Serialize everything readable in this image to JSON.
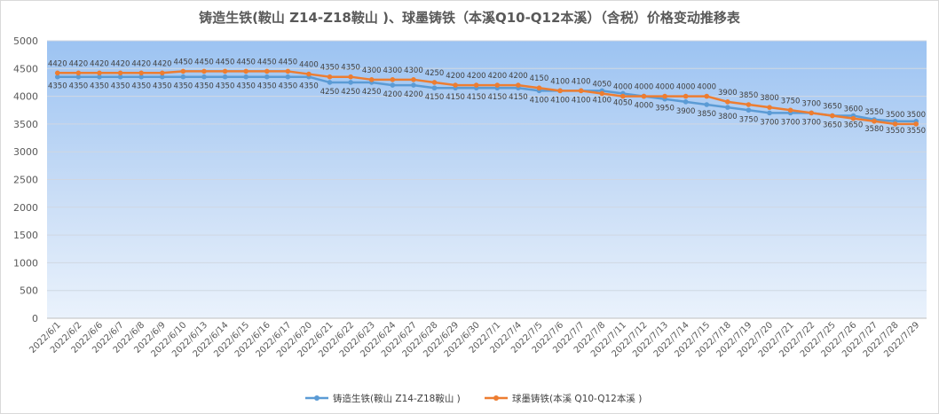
{
  "chart_data": {
    "type": "line",
    "title": "铸造生铁(鞍山 Z14-Z18鞍山 )、球墨铸铁（本溪Q10-Q12本溪）（含税）价格变动推移表",
    "x": [
      "2022/6/1",
      "2022/6/2",
      "2022/6/6",
      "2022/6/7",
      "2022/6/8",
      "2022/6/9",
      "2022/6/10",
      "2022/6/13",
      "2022/6/14",
      "2022/6/15",
      "2022/6/16",
      "2022/6/17",
      "2022/6/20",
      "2022/6/21",
      "2022/6/22",
      "2022/6/23",
      "2022/6/24",
      "2022/6/27",
      "2022/6/28",
      "2022/6/29",
      "2022/6/30",
      "2022/7/1",
      "2022/7/4",
      "2022/7/5",
      "2022/7/6",
      "2022/7/7",
      "2022/7/8",
      "2022/7/11",
      "2022/7/12",
      "2022/7/13",
      "2022/7/14",
      "2022/7/15",
      "2022/7/18",
      "2022/7/19",
      "2022/7/20",
      "2022/7/21",
      "2022/7/22",
      "2022/7/25",
      "2022/7/26",
      "2022/7/27",
      "2022/7/28",
      "2022/7/29"
    ],
    "yticks": [
      "0",
      "500",
      "1000",
      "1500",
      "2000",
      "2500",
      "3000",
      "3500",
      "4000",
      "4500",
      "5000"
    ],
    "ylim": [
      0,
      5000
    ],
    "grid": true,
    "legend_position": "bottom",
    "series": [
      {
        "name": "铸造生铁(鞍山 Z14-Z18鞍山 )",
        "color": "#5b9bd5",
        "values": [
          4350,
          4350,
          4350,
          4350,
          4350,
          4350,
          4350,
          4350,
          4350,
          4350,
          4350,
          4350,
          4350,
          4250,
          4250,
          4250,
          4200,
          4200,
          4150,
          4150,
          4150,
          4150,
          4150,
          4100,
          4100,
          4100,
          4100,
          4050,
          4000,
          3950,
          3900,
          3850,
          3800,
          3750,
          3700,
          3700,
          3700,
          3650,
          3650,
          3580,
          3550,
          3550
        ]
      },
      {
        "name": "球墨铸铁(本溪 Q10-Q12本溪 )",
        "color": "#ed7d31",
        "values": [
          4420,
          4420,
          4420,
          4420,
          4420,
          4420,
          4450,
          4450,
          4450,
          4450,
          4450,
          4450,
          4400,
          4350,
          4350,
          4300,
          4300,
          4300,
          4250,
          4200,
          4200,
          4200,
          4200,
          4150,
          4100,
          4100,
          4050,
          4000,
          4000,
          4000,
          4000,
          4000,
          3900,
          3850,
          3800,
          3750,
          3700,
          3650,
          3600,
          3550,
          3500,
          3500
        ]
      }
    ]
  }
}
